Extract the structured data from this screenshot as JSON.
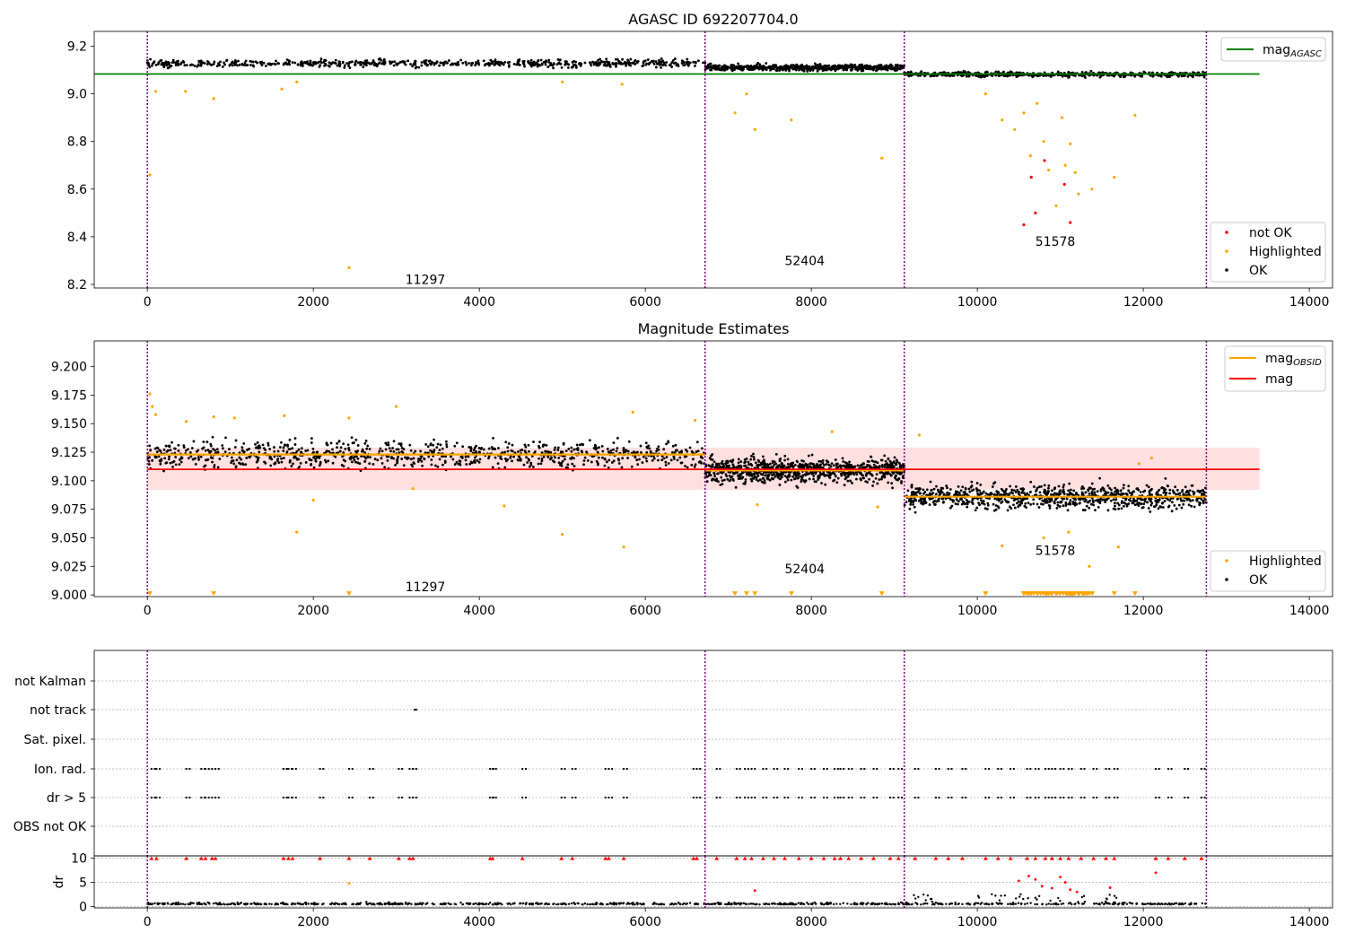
{
  "chart_data": [
    {
      "type": "scatter",
      "title": "AGASC ID 692207704.0",
      "xlim": [
        -640,
        14280
      ],
      "ylim": [
        8.185,
        9.262
      ],
      "xticks": [
        "0",
        "2000",
        "4000",
        "6000",
        "8000",
        "10000",
        "12000",
        "14000"
      ],
      "yticks": [
        "8.2",
        "8.4",
        "8.6",
        "8.8",
        "9.0",
        "9.2"
      ],
      "obs_boundaries": [
        0,
        6720,
        9120,
        12760
      ],
      "obs_labels": [
        {
          "text": "11297",
          "x": 3350,
          "y": 8.22
        },
        {
          "text": "52404",
          "x": 7920,
          "y": 8.3
        },
        {
          "text": "51578",
          "x": 10940,
          "y": 8.38
        }
      ],
      "mag_agasc": 9.083,
      "legend_upper": [
        {
          "label": "mag",
          "sub": "AGASC",
          "color": "#008000"
        }
      ],
      "legend_lower": [
        {
          "label": "not OK",
          "color": "#ff0000"
        },
        {
          "label": "Highlighted",
          "color": "#ffa500"
        },
        {
          "label": "OK",
          "color": "#000000"
        }
      ],
      "series": [
        {
          "name": "OK",
          "color": "#000000",
          "segments": [
            {
              "x": [
                0,
                6720
              ],
              "mean": 9.128,
              "spread": 0.012
            },
            {
              "x": [
                6720,
                9120
              ],
              "mean": 9.11,
              "spread": 0.01
            },
            {
              "x": [
                9120,
                12760
              ],
              "mean": 9.082,
              "spread": 0.008
            }
          ]
        },
        {
          "name": "Highlighted",
          "color": "#ffa500",
          "points": [
            [
              30,
              8.66
            ],
            [
              100,
              9.01
            ],
            [
              460,
              9.01
            ],
            [
              800,
              8.98
            ],
            [
              1620,
              9.02
            ],
            [
              1800,
              9.05
            ],
            [
              2430,
              8.27
            ],
            [
              5000,
              9.05
            ],
            [
              5720,
              9.04
            ],
            [
              7080,
              8.92
            ],
            [
              7220,
              9.0
            ],
            [
              7320,
              8.85
            ],
            [
              7760,
              8.89
            ],
            [
              8850,
              8.73
            ],
            [
              10100,
              9.0
            ],
            [
              10300,
              8.89
            ],
            [
              10450,
              8.85
            ],
            [
              10560,
              8.92
            ],
            [
              10640,
              8.74
            ],
            [
              10720,
              8.96
            ],
            [
              10800,
              8.8
            ],
            [
              10860,
              8.68
            ],
            [
              10950,
              8.53
            ],
            [
              11020,
              8.9
            ],
            [
              11060,
              8.7
            ],
            [
              11120,
              8.79
            ],
            [
              11180,
              8.67
            ],
            [
              11220,
              8.58
            ],
            [
              11380,
              8.6
            ],
            [
              11650,
              8.65
            ],
            [
              11900,
              8.91
            ]
          ]
        },
        {
          "name": "not OK",
          "color": "#ff0000",
          "points": [
            [
              10560,
              8.45
            ],
            [
              10650,
              8.65
            ],
            [
              10700,
              8.5
            ],
            [
              10810,
              8.72
            ],
            [
              11050,
              8.62
            ],
            [
              11120,
              8.46
            ]
          ]
        }
      ]
    },
    {
      "type": "scatter",
      "title": "Magnitude Estimates",
      "xlim": [
        -640,
        14280
      ],
      "ylim": [
        8.9985,
        9.2225
      ],
      "xticks": [
        "0",
        "2000",
        "4000",
        "6000",
        "8000",
        "10000",
        "12000",
        "14000"
      ],
      "yticks": [
        "9.000",
        "9.025",
        "9.050",
        "9.075",
        "9.100",
        "9.125",
        "9.150",
        "9.175",
        "9.200"
      ],
      "obs_boundaries": [
        0,
        6720,
        9120,
        12760
      ],
      "obs_labels": [
        {
          "text": "11297",
          "x": 3350,
          "y": 9.007
        },
        {
          "text": "52404",
          "x": 7920,
          "y": 9.023
        },
        {
          "text": "51578",
          "x": 10940,
          "y": 9.039
        }
      ],
      "mag": 9.11,
      "mag_band": [
        9.092,
        9.129
      ],
      "mag_obsid": [
        {
          "x": [
            0,
            6720
          ],
          "value": 9.123
        },
        {
          "x": [
            6720,
            9120
          ],
          "value": 9.109
        },
        {
          "x": [
            9120,
            12760
          ],
          "value": 9.086
        }
      ],
      "legend_upper": [
        {
          "label": "mag",
          "sub": "OBSID",
          "color": "#ffa500"
        },
        {
          "label": "mag",
          "sub": "",
          "color": "#ff0000"
        }
      ],
      "legend_lower": [
        {
          "label": "Highlighted",
          "color": "#ffa500"
        },
        {
          "label": "OK",
          "color": "#000000"
        }
      ],
      "series": [
        {
          "name": "OK",
          "color": "#000000",
          "segments": [
            {
              "x": [
                0,
                6720
              ],
              "mean": 9.123,
              "spread": 0.009
            },
            {
              "x": [
                6720,
                9120
              ],
              "mean": 9.109,
              "spread": 0.008
            },
            {
              "x": [
                9120,
                12760
              ],
              "mean": 9.086,
              "spread": 0.008
            }
          ]
        },
        {
          "name": "Highlighted",
          "color": "#ffa500",
          "points": [
            [
              30,
              9.176
            ],
            [
              60,
              9.165
            ],
            [
              100,
              9.158
            ],
            [
              470,
              9.152
            ],
            [
              800,
              9.156
            ],
            [
              1050,
              9.155
            ],
            [
              1650,
              9.157
            ],
            [
              1800,
              9.055
            ],
            [
              2000,
              9.083
            ],
            [
              2430,
              9.155
            ],
            [
              3000,
              9.165
            ],
            [
              3200,
              9.093
            ],
            [
              4300,
              9.078
            ],
            [
              5000,
              9.053
            ],
            [
              5740,
              9.042
            ],
            [
              5850,
              9.16
            ],
            [
              6600,
              9.153
            ],
            [
              7350,
              9.079
            ],
            [
              8250,
              9.143
            ],
            [
              8800,
              9.077
            ],
            [
              9300,
              9.14
            ],
            [
              10300,
              9.043
            ],
            [
              10800,
              9.05
            ],
            [
              11100,
              9.055
            ],
            [
              11350,
              9.025
            ],
            [
              11700,
              9.042
            ],
            [
              11950,
              9.115
            ],
            [
              12100,
              9.12
            ]
          ]
        },
        {
          "name": "Highlighted (off scale)",
          "color": "#ffa500",
          "marker": "triangle-down",
          "points": [
            [
              30,
              9.0
            ],
            [
              800,
              9.0
            ],
            [
              2430,
              9.0
            ],
            [
              7080,
              9.0
            ],
            [
              7220,
              9.0
            ],
            [
              7320,
              9.0
            ],
            [
              7760,
              9.0
            ],
            [
              8850,
              9.0
            ],
            [
              10100,
              9.0
            ],
            [
              11650,
              9.0
            ],
            [
              11900,
              9.0
            ]
          ]
        }
      ]
    },
    {
      "type": "scatter",
      "title": "",
      "xlim": [
        -640,
        14280
      ],
      "xticks": [
        "0",
        "2000",
        "4000",
        "6000",
        "8000",
        "10000",
        "12000",
        "14000"
      ],
      "obs_boundaries": [
        0,
        6720,
        9120,
        12760
      ],
      "flag_rows": [
        "not Kalman",
        "not track",
        "Sat. pixel.",
        "Ion. rad.",
        "dr > 5",
        "OBS not OK"
      ],
      "flags": {
        "not track": [
          3220,
          3240
        ],
        "Ion. rad.": [
          50,
          110,
          470,
          650,
          700,
          780,
          820,
          1640,
          1700,
          1750,
          2080,
          2430,
          2680,
          3030,
          3160,
          3200,
          4130,
          4160,
          4520,
          4990,
          5120,
          5520,
          5560,
          5740,
          6580,
          6620,
          6860,
          7100,
          7200,
          7280,
          7420,
          7550,
          7680,
          7850,
          8000,
          8150,
          8280,
          8350,
          8450,
          8600,
          8750,
          8950,
          9050,
          9250,
          9500,
          9650,
          9820,
          10100,
          10250,
          10400,
          10600,
          10700,
          10820,
          10900,
          11000,
          11100,
          11250,
          11400,
          11550,
          11650,
          12150,
          12300,
          12500,
          12700
        ],
        "dr > 5": [
          50,
          110,
          470,
          650,
          700,
          780,
          820,
          1640,
          1700,
          1750,
          2080,
          2430,
          2680,
          3030,
          3160,
          3200,
          4130,
          4160,
          4520,
          4990,
          5120,
          5520,
          5560,
          5740,
          6580,
          6620,
          6860,
          7100,
          7200,
          7280,
          7420,
          7550,
          7680,
          7850,
          8000,
          8150,
          8280,
          8350,
          8450,
          8600,
          8750,
          8950,
          9050,
          9250,
          9500,
          9650,
          9820,
          10100,
          10250,
          10400,
          10600,
          10700,
          10820,
          10900,
          11000,
          11100,
          11250,
          11400,
          11550,
          11650,
          12150,
          12300,
          12500,
          12700
        ]
      }
    },
    {
      "type": "scatter",
      "title": "",
      "ylabel": "dr",
      "xlim": [
        -640,
        14280
      ],
      "ylim": [
        -0.3,
        10.5
      ],
      "xticks": [
        "0",
        "2000",
        "4000",
        "6000",
        "8000",
        "10000",
        "12000",
        "14000"
      ],
      "yticks": [
        "0",
        "5",
        "10"
      ],
      "obs_boundaries": [
        0,
        6720,
        9120,
        12760
      ],
      "series": [
        {
          "name": "OK",
          "color": "#000000",
          "baseline": 0.4,
          "spread": 0.35
        },
        {
          "name": "not OK",
          "color": "#ff0000",
          "points": [
            [
              7320,
              3.3
            ],
            [
              10500,
              5.3
            ],
            [
              10620,
              6.3
            ],
            [
              10700,
              5.6
            ],
            [
              10780,
              4.2
            ],
            [
              10900,
              3.8
            ],
            [
              11000,
              6.1
            ],
            [
              11060,
              5.0
            ],
            [
              11120,
              3.5
            ],
            [
              11200,
              3.0
            ],
            [
              11600,
              3.9
            ],
            [
              12150,
              7.0
            ]
          ]
        },
        {
          "name": "Highlighted",
          "color": "#ffa500",
          "points": [
            [
              2430,
              4.8
            ]
          ]
        },
        {
          "name": "not OK (clipped)",
          "color": "#ff0000",
          "marker": "triangle-up",
          "clip": 10
        }
      ]
    }
  ]
}
